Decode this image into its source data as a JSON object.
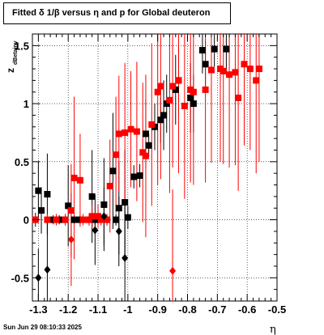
{
  "chart_data": {
    "type": "scatter",
    "title": "Fitted δ 1/β versus η and p for Global deuteron",
    "xlabel": "η",
    "ylabel": "z_dBetainv",
    "xlim": [
      -1.32,
      -0.5
    ],
    "ylim": [
      -0.7,
      1.6
    ],
    "x_ticks": [
      -1.3,
      -1.2,
      -1.1,
      -1.0,
      -0.9,
      -0.8,
      -0.7,
      -0.6,
      -0.5
    ],
    "x_tick_labels": [
      "-1.3",
      "-1.2",
      "-1.1",
      "-1",
      "-0.9",
      "-0.8",
      "-0.7",
      "-0.6",
      "-0.5"
    ],
    "y_ticks": [
      -0.5,
      0,
      0.5,
      1,
      1.5
    ],
    "y_tick_labels": [
      "-0.5",
      "0",
      "0.5",
      "1",
      "1.5"
    ],
    "grid": true,
    "legend": "none",
    "series": [
      {
        "color": "#000000",
        "marker": "square",
        "points": [
          [
            -1.31,
            0.0,
            0.06
          ],
          [
            -1.3,
            0.25,
            0.25
          ],
          [
            -1.29,
            0.08,
            0.2
          ],
          [
            -1.27,
            0.22,
            0.35
          ],
          [
            -1.25,
            0.0,
            0.04
          ],
          [
            -1.23,
            0.0,
            0.04
          ],
          [
            -1.21,
            0.0,
            0.05
          ],
          [
            -1.2,
            0.12,
            0.35
          ],
          [
            -1.18,
            0.0,
            0.04
          ],
          [
            -1.16,
            0.0,
            0.04
          ],
          [
            -1.13,
            0.0,
            0.05
          ],
          [
            -1.12,
            0.2,
            0.4
          ],
          [
            -1.11,
            0.0,
            0.05
          ],
          [
            -1.08,
            0.13,
            0.4
          ],
          [
            -1.07,
            0.0,
            0.05
          ],
          [
            -1.05,
            0.42,
            0.5
          ],
          [
            -1.04,
            0.0,
            0.05
          ],
          [
            -1.03,
            0.1,
            0.4
          ],
          [
            -1.01,
            0.15,
            0.45
          ],
          [
            -1.0,
            0.02,
            0.1
          ],
          [
            -0.98,
            0.37,
            0.1
          ],
          [
            -0.96,
            0.38,
            0.1
          ],
          [
            -0.94,
            0.74,
            0.3
          ],
          [
            -0.93,
            0.64,
            0.1
          ],
          [
            -0.91,
            0.8,
            0.2
          ],
          [
            -0.89,
            0.86,
            0.2
          ],
          [
            -0.88,
            0.9,
            0.3
          ],
          [
            -0.87,
            1.0,
            0.25
          ],
          [
            -0.84,
            1.12,
            0.3
          ],
          [
            -0.83,
            1.2,
            0.3
          ],
          [
            -0.79,
            1.05,
            0.3
          ],
          [
            -0.78,
            1.0,
            0.25
          ],
          [
            -0.75,
            1.46,
            0.2
          ],
          [
            -0.74,
            1.34,
            0.2
          ],
          [
            -0.71,
            1.47,
            0.15
          ],
          [
            -0.67,
            1.47,
            0.2
          ]
        ]
      },
      {
        "color": "#ff0000",
        "marker": "square",
        "points": [
          [
            -1.31,
            0.0,
            0.05
          ],
          [
            -1.27,
            0.0,
            0.05
          ],
          [
            -1.24,
            0.0,
            0.05
          ],
          [
            -1.21,
            0.0,
            0.05
          ],
          [
            -1.19,
            0.08,
            0.4
          ],
          [
            -1.18,
            0.36,
            0.7
          ],
          [
            -1.16,
            0.34,
            0.4
          ],
          [
            -1.15,
            0.0,
            0.05
          ],
          [
            -1.13,
            0.0,
            0.05
          ],
          [
            -1.12,
            0.03,
            0.1
          ],
          [
            -1.1,
            0.03,
            0.1
          ],
          [
            -1.09,
            0.0,
            0.05
          ],
          [
            -1.07,
            0.0,
            0.05
          ],
          [
            -1.06,
            0.29,
            0.4
          ],
          [
            -1.04,
            0.56,
            0.5
          ],
          [
            -1.03,
            0.74,
            0.5
          ],
          [
            -1.01,
            0.75,
            0.6
          ],
          [
            -0.99,
            0.78,
            0.5
          ],
          [
            -0.97,
            0.76,
            0.6
          ],
          [
            -0.95,
            0.58,
            0.6
          ],
          [
            -0.94,
            0.55,
            0.7
          ],
          [
            -0.92,
            0.82,
            0.7
          ],
          [
            -0.9,
            1.1,
            0.8
          ],
          [
            -0.89,
            1.15,
            0.8
          ],
          [
            -0.86,
            1.03,
            0.8
          ],
          [
            -0.85,
            1.15,
            0.7
          ],
          [
            -0.83,
            1.2,
            0.8
          ],
          [
            -0.81,
            0.98,
            0.8
          ],
          [
            -0.79,
            1.12,
            0.8
          ],
          [
            -0.78,
            1.1,
            0.8
          ],
          [
            -0.74,
            1.12,
            0.8
          ],
          [
            -0.72,
            1.29,
            0.8
          ],
          [
            -0.69,
            1.3,
            0.8
          ],
          [
            -0.68,
            1.28,
            0.8
          ],
          [
            -0.66,
            1.25,
            0.8
          ],
          [
            -0.64,
            1.27,
            0.8
          ],
          [
            -0.63,
            1.05,
            0.8
          ],
          [
            -0.61,
            1.34,
            0.7
          ],
          [
            -0.59,
            1.3,
            0.7
          ],
          [
            -0.57,
            1.2,
            0.8
          ],
          [
            -0.56,
            1.3,
            0.8
          ]
        ]
      },
      {
        "color": "#000000",
        "marker": "diamond",
        "points": [
          [
            -1.3,
            -0.5,
            0.25
          ],
          [
            -1.27,
            -0.43,
            0.45
          ],
          [
            -1.11,
            -0.09,
            0.3
          ],
          [
            -1.08,
            0.03,
            0.25
          ],
          [
            -1.03,
            -0.1,
            0.3
          ],
          [
            -1.01,
            -0.33,
            0.45
          ]
        ]
      },
      {
        "color": "#ff0000",
        "marker": "diamond",
        "points": [
          [
            -1.19,
            -0.17,
            0.4
          ],
          [
            -0.85,
            -0.44,
            0.7
          ]
        ]
      }
    ]
  },
  "stamp": "Sun Jun 29 08:10:33 2025"
}
